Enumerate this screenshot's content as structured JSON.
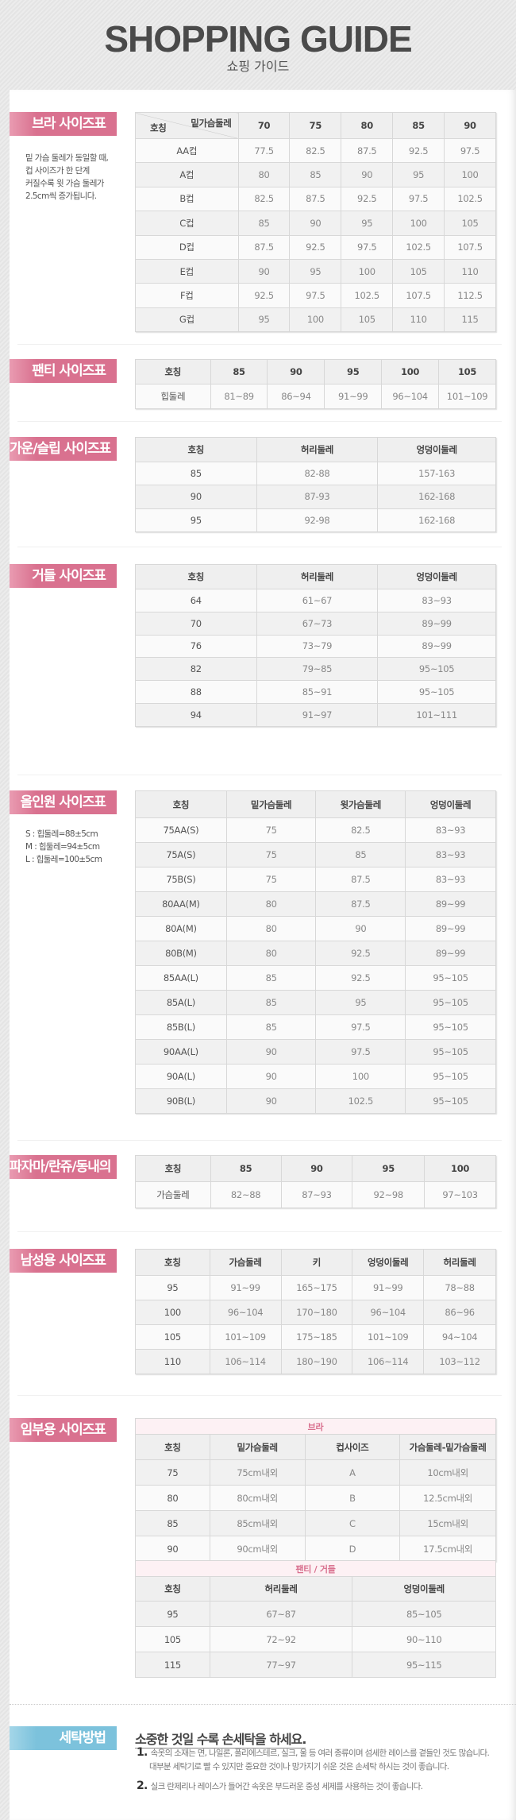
{
  "header": {
    "title": "SHOPPING GUIDE",
    "subtitle": "쇼핑 가이드"
  },
  "bra": {
    "label": "브라 사이즈표",
    "note": [
      "밑 가슴 둘레가 동일할 때,",
      "컵 사이즈가 한 단계",
      "커질수록 윗 가슴 둘레가",
      "2.5cm씩 증가됩니다."
    ],
    "corner_top": "밑가슴둘레",
    "corner_bottom": "호칭",
    "header": [
      "70",
      "75",
      "80",
      "85",
      "90"
    ],
    "rows": [
      [
        "AA컵",
        "77.5",
        "82.5",
        "87.5",
        "92.5",
        "97.5"
      ],
      [
        "A컵",
        "80",
        "85",
        "90",
        "95",
        "100"
      ],
      [
        "B컵",
        "82.5",
        "87.5",
        "92.5",
        "97.5",
        "102.5"
      ],
      [
        "C컵",
        "85",
        "90",
        "95",
        "100",
        "105"
      ],
      [
        "D컵",
        "87.5",
        "92.5",
        "97.5",
        "102.5",
        "107.5"
      ],
      [
        "E컵",
        "90",
        "95",
        "100",
        "105",
        "110"
      ],
      [
        "F컵",
        "92.5",
        "97.5",
        "102.5",
        "107.5",
        "112.5"
      ],
      [
        "G컵",
        "95",
        "100",
        "105",
        "110",
        "115"
      ]
    ]
  },
  "panty": {
    "label": "팬티 사이즈표",
    "header": [
      "호칭",
      "85",
      "90",
      "95",
      "100",
      "105"
    ],
    "rows": [
      [
        "힙둘레",
        "81~89",
        "86~94",
        "91~99",
        "96~104",
        "101~109"
      ]
    ]
  },
  "gown": {
    "label": "가운/슬립 사이즈표",
    "header": [
      "호칭",
      "허리둘레",
      "엉덩이둘레"
    ],
    "rows": [
      [
        "85",
        "82-88",
        "157-163"
      ],
      [
        "90",
        "87-93",
        "162-168"
      ],
      [
        "95",
        "92-98",
        "162-168"
      ]
    ]
  },
  "girdle": {
    "label": "거들 사이즈표",
    "header": [
      "호칭",
      "허리둘레",
      "엉덩이둘레"
    ],
    "rows": [
      [
        "64",
        "61~67",
        "83~93"
      ],
      [
        "70",
        "67~73",
        "89~99"
      ],
      [
        "76",
        "73~79",
        "89~99"
      ],
      [
        "82",
        "79~85",
        "95~105"
      ],
      [
        "88",
        "85~91",
        "95~105"
      ],
      [
        "94",
        "91~97",
        "101~111"
      ]
    ]
  },
  "allinone": {
    "label": "올인원 사이즈표",
    "note": [
      "S : 힙둘레=88±5cm",
      "M : 힙둘레=94±5cm",
      "L : 힙둘레=100±5cm"
    ],
    "header": [
      "호칭",
      "밑가슴둘레",
      "윗가슴둘레",
      "엉덩이둘레"
    ],
    "rows": [
      [
        "75AA(S)",
        "75",
        "82.5",
        "83~93"
      ],
      [
        "75A(S)",
        "75",
        "85",
        "83~93"
      ],
      [
        "75B(S)",
        "75",
        "87.5",
        "83~93"
      ],
      [
        "80AA(M)",
        "80",
        "87.5",
        "89~99"
      ],
      [
        "80A(M)",
        "80",
        "90",
        "89~99"
      ],
      [
        "80B(M)",
        "80",
        "92.5",
        "89~99"
      ],
      [
        "85AA(L)",
        "85",
        "92.5",
        "95~105"
      ],
      [
        "85A(L)",
        "85",
        "95",
        "95~105"
      ],
      [
        "85B(L)",
        "85",
        "97.5",
        "95~105"
      ],
      [
        "90AA(L)",
        "90",
        "97.5",
        "95~105"
      ],
      [
        "90A(L)",
        "90",
        "100",
        "95~105"
      ],
      [
        "90B(L)",
        "90",
        "102.5",
        "95~105"
      ]
    ]
  },
  "pajama": {
    "label": "파자마/란쥬/동내의",
    "header": [
      "호칭",
      "85",
      "90",
      "95",
      "100"
    ],
    "rows": [
      [
        "가슴둘레",
        "82~88",
        "87~93",
        "92~98",
        "97~103"
      ]
    ]
  },
  "men": {
    "label": "남성용 사이즈표",
    "header": [
      "호칭",
      "가슴둘레",
      "키",
      "엉덩이둘레",
      "허리둘레"
    ],
    "rows": [
      [
        "95",
        "91~99",
        "165~175",
        "91~99",
        "78~88"
      ],
      [
        "100",
        "96~104",
        "170~180",
        "96~104",
        "86~96"
      ],
      [
        "105",
        "101~109",
        "175~185",
        "101~109",
        "94~104"
      ],
      [
        "110",
        "106~114",
        "180~190",
        "106~114",
        "103~112"
      ]
    ]
  },
  "maternity": {
    "label": "임부용 사이즈표",
    "bra_title": "브라",
    "bra_header": [
      "호칭",
      "밑가슴둘레",
      "컵사이즈",
      "가슴둘레-밑가슴둘레"
    ],
    "bra_rows": [
      [
        "75",
        "75cm내외",
        "A",
        "10cm내외"
      ],
      [
        "80",
        "80cm내외",
        "B",
        "12.5cm내외"
      ],
      [
        "85",
        "85cm내외",
        "C",
        "15cm내외"
      ],
      [
        "90",
        "90cm내외",
        "D",
        "17.5cm내외"
      ]
    ],
    "panty_title": "팬티 / 거들",
    "panty_header": [
      "호칭",
      "허리둘레",
      "엉덩이둘레"
    ],
    "panty_rows": [
      [
        "95",
        "67~87",
        "85~105"
      ],
      [
        "105",
        "72~92",
        "90~110"
      ],
      [
        "115",
        "77~97",
        "95~115"
      ]
    ]
  },
  "washing": {
    "label": "세탁방법",
    "heading": "소중한 것일 수록 손세탁을 하세요.",
    "items": [
      {
        "num": "1.",
        "line1": "속옷의 소재는 면, 나일론, 폴리에스테르, 실크, 울 등 여러 종류이며 섬세한 레이스를 곁들인 것도 많습니다.",
        "line2": "대부분 세탁기로 빨 수 있지만 중요한 것이나 망가지기 쉬운 것은 손세탁 하시는 것이 좋습니다."
      },
      {
        "num": "2.",
        "line1": "실크 란제리나 레이스가 들어간 속옷은 부드러운 중성 세제를 사용하는 것이 좋습니다."
      }
    ]
  },
  "colors": {
    "label_pink": "#d9718f",
    "label_blue": "#7cc2dc",
    "subheader_pink": "#d9718f"
  }
}
